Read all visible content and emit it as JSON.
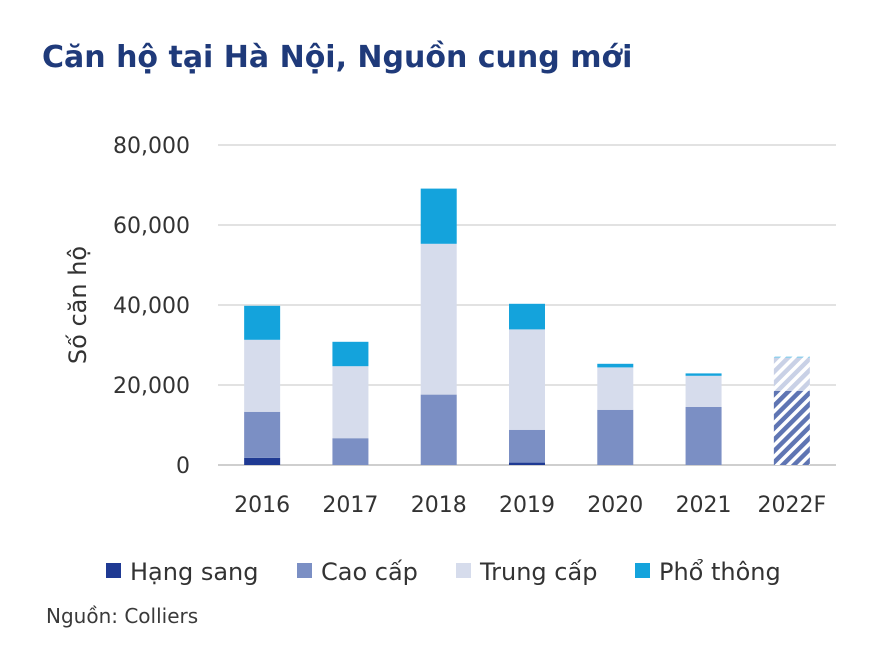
{
  "title": "Căn hộ tại Hà Nội, Nguồn cung mới",
  "source": "Nguồn: Colliers",
  "chart_data": {
    "type": "bar",
    "stacked": true,
    "categories": [
      "2016",
      "2017",
      "2018",
      "2019",
      "2020",
      "2021",
      "2022F"
    ],
    "forecast_category": "2022F",
    "ylabel": "Số căn hộ",
    "xlabel": "",
    "ylim": [
      0,
      80000
    ],
    "yticks": [
      0,
      20000,
      40000,
      60000,
      80000
    ],
    "ytick_labels": [
      "0",
      "20,000",
      "40,000",
      "60,000",
      "80,000"
    ],
    "grid": true,
    "legend_position": "bottom",
    "series": [
      {
        "name": "Hạng sang",
        "color": "#1f3a93",
        "values": [
          1800,
          0,
          0,
          600,
          0,
          0,
          0
        ]
      },
      {
        "name": "Cao cấp",
        "color": "#7b8fc4",
        "values": [
          11500,
          6700,
          17600,
          8200,
          13800,
          14500,
          18500
        ]
      },
      {
        "name": "Trung cấp",
        "color": "#d6dcec",
        "values": [
          18000,
          18000,
          37700,
          25100,
          10600,
          7800,
          8300
        ]
      },
      {
        "name": "Phổ thông",
        "color": "#14a3dc",
        "values": [
          8500,
          6100,
          13800,
          6400,
          900,
          600,
          300
        ]
      }
    ]
  }
}
